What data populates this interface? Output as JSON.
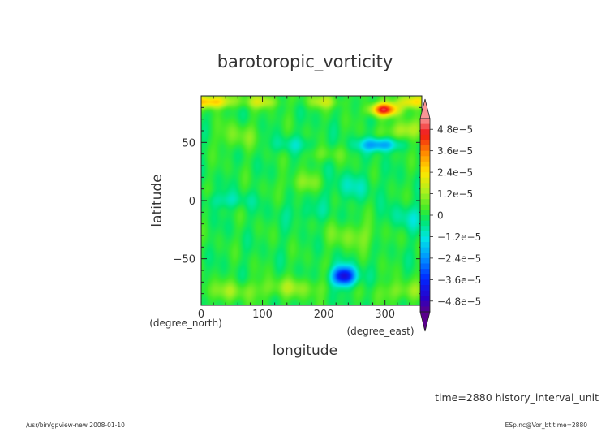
{
  "chart_data": {
    "type": "heatmap",
    "title": "barotoropic_vorticity",
    "xlabel": "longitude",
    "ylabel": "latitude",
    "x_unit": "(degree_east)",
    "y_unit": "(degree_north)",
    "xlim": [
      0,
      360
    ],
    "ylim": [
      -90,
      90
    ],
    "x_ticks": [
      0,
      100,
      200,
      300
    ],
    "y_ticks": [
      -50,
      0,
      50
    ],
    "x_tick_labels": [
      "0",
      "100",
      "200",
      "300"
    ],
    "y_tick_labels": [
      "−50",
      "0",
      "50"
    ],
    "colorbar": {
      "min": -5.4e-05,
      "max": 5.4e-05,
      "tick_values": [
        4.8e-05,
        3.6e-05,
        2.4e-05,
        1.2e-05,
        0,
        -1.2e-05,
        -2.4e-05,
        -3.6e-05,
        -4.8e-05
      ],
      "tick_labels": [
        "4.8e−5",
        "3.6e−5",
        "2.4e−5",
        "1.2e−5",
        "0",
        "−1.2e−5",
        "−2.4e−5",
        "−3.6e−5",
        "−4.8e−5"
      ]
    },
    "features": [
      {
        "lon": 233,
        "lat": -65,
        "value": -4.5e-05,
        "sx": 14,
        "sy": 6
      },
      {
        "lon": 298,
        "lat": 78,
        "value": 4.4e-05,
        "sx": 16,
        "sy": 4
      },
      {
        "lon": 290,
        "lat": 48,
        "value": -2.6e-05,
        "sx": 22,
        "sy": 4
      },
      {
        "lon": 15,
        "lat": 85,
        "value": 3e-05,
        "sx": 25,
        "sy": 4
      },
      {
        "lon": 345,
        "lat": 85,
        "value": 2.6e-05,
        "sx": 18,
        "sy": 4
      },
      {
        "lon": 100,
        "lat": 85,
        "value": 1.6e-05,
        "sx": 20,
        "sy": 4
      },
      {
        "lon": 200,
        "lat": 85,
        "value": 1.4e-05,
        "sx": 20,
        "sy": 4
      },
      {
        "lon": 330,
        "lat": 60,
        "value": 1.5e-05,
        "sx": 20,
        "sy": 6
      },
      {
        "lon": 60,
        "lat": 55,
        "value": 8e-06,
        "sx": 25,
        "sy": 8
      },
      {
        "lon": 150,
        "lat": 48,
        "value": -7e-06,
        "sx": 30,
        "sy": 5
      },
      {
        "lon": 40,
        "lat": 0,
        "value": -8e-06,
        "sx": 30,
        "sy": 5
      },
      {
        "lon": 240,
        "lat": 12,
        "value": -8e-06,
        "sx": 30,
        "sy": 8
      },
      {
        "lon": 170,
        "lat": 15,
        "value": 9e-06,
        "sx": 25,
        "sy": 6
      },
      {
        "lon": 250,
        "lat": -30,
        "value": 9e-06,
        "sx": 30,
        "sy": 8
      },
      {
        "lon": 340,
        "lat": -15,
        "value": -8e-06,
        "sx": 25,
        "sy": 8
      },
      {
        "lon": 170,
        "lat": -10,
        "value": -5e-06,
        "sx": 30,
        "sy": 6
      },
      {
        "lon": 150,
        "lat": -75,
        "value": 1e-05,
        "sx": 40,
        "sy": 6
      },
      {
        "lon": 40,
        "lat": -78,
        "value": 9e-06,
        "sx": 40,
        "sy": 6
      },
      {
        "lon": 330,
        "lat": -78,
        "value": 1e-05,
        "sx": 30,
        "sy": 6
      },
      {
        "lon": 200,
        "lat": 40,
        "value": 6e-06,
        "sx": 25,
        "sy": 5
      }
    ]
  },
  "footer": {
    "time_label": "time=2880  history_interval_unit",
    "program": "/usr/bin/gpview-new   2008-01-10",
    "source": "ESp.nc@Vor_bt,time=2880"
  }
}
